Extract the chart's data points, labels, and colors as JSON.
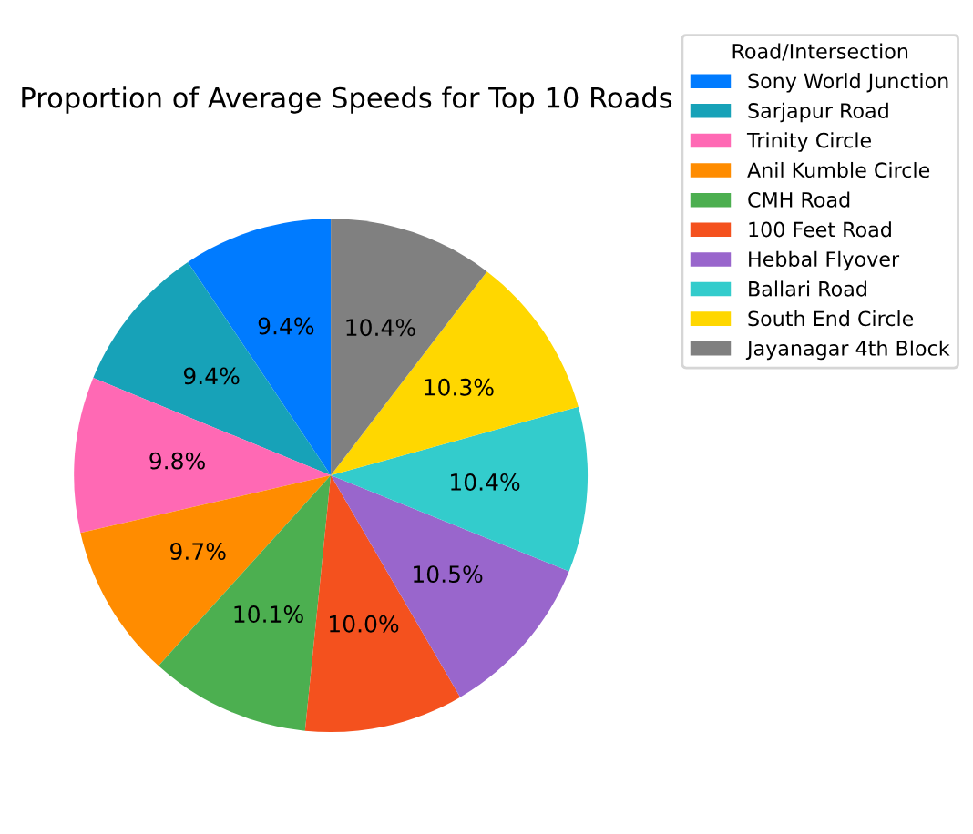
{
  "chart_data": {
    "type": "pie",
    "title": "Proportion of Average Speeds for Top 10 Roads",
    "legend_title": "Road/Intersection",
    "legend": "right",
    "categories": [
      "Sony World Junction",
      "Sarjapur Road",
      "Trinity Circle",
      "Anil Kumble Circle",
      "CMH Road",
      "100 Feet Road",
      "Hebbal Flyover",
      "Ballari Road",
      "South End Circle",
      "Jayanagar 4th Block"
    ],
    "values": [
      9.4,
      9.4,
      9.8,
      9.7,
      10.1,
      10.0,
      10.5,
      10.4,
      10.3,
      10.4
    ],
    "value_labels": [
      "9.4%",
      "9.4%",
      "9.8%",
      "9.7%",
      "10.1%",
      "10.0%",
      "10.5%",
      "10.4%",
      "10.3%",
      "10.4%"
    ],
    "colors": [
      "#007bff",
      "#17a2b8",
      "#ff69b4",
      "#ff8c00",
      "#4caf50",
      "#f4511e",
      "#9966cc",
      "#33cccc",
      "#ffd700",
      "#808080"
    ]
  }
}
